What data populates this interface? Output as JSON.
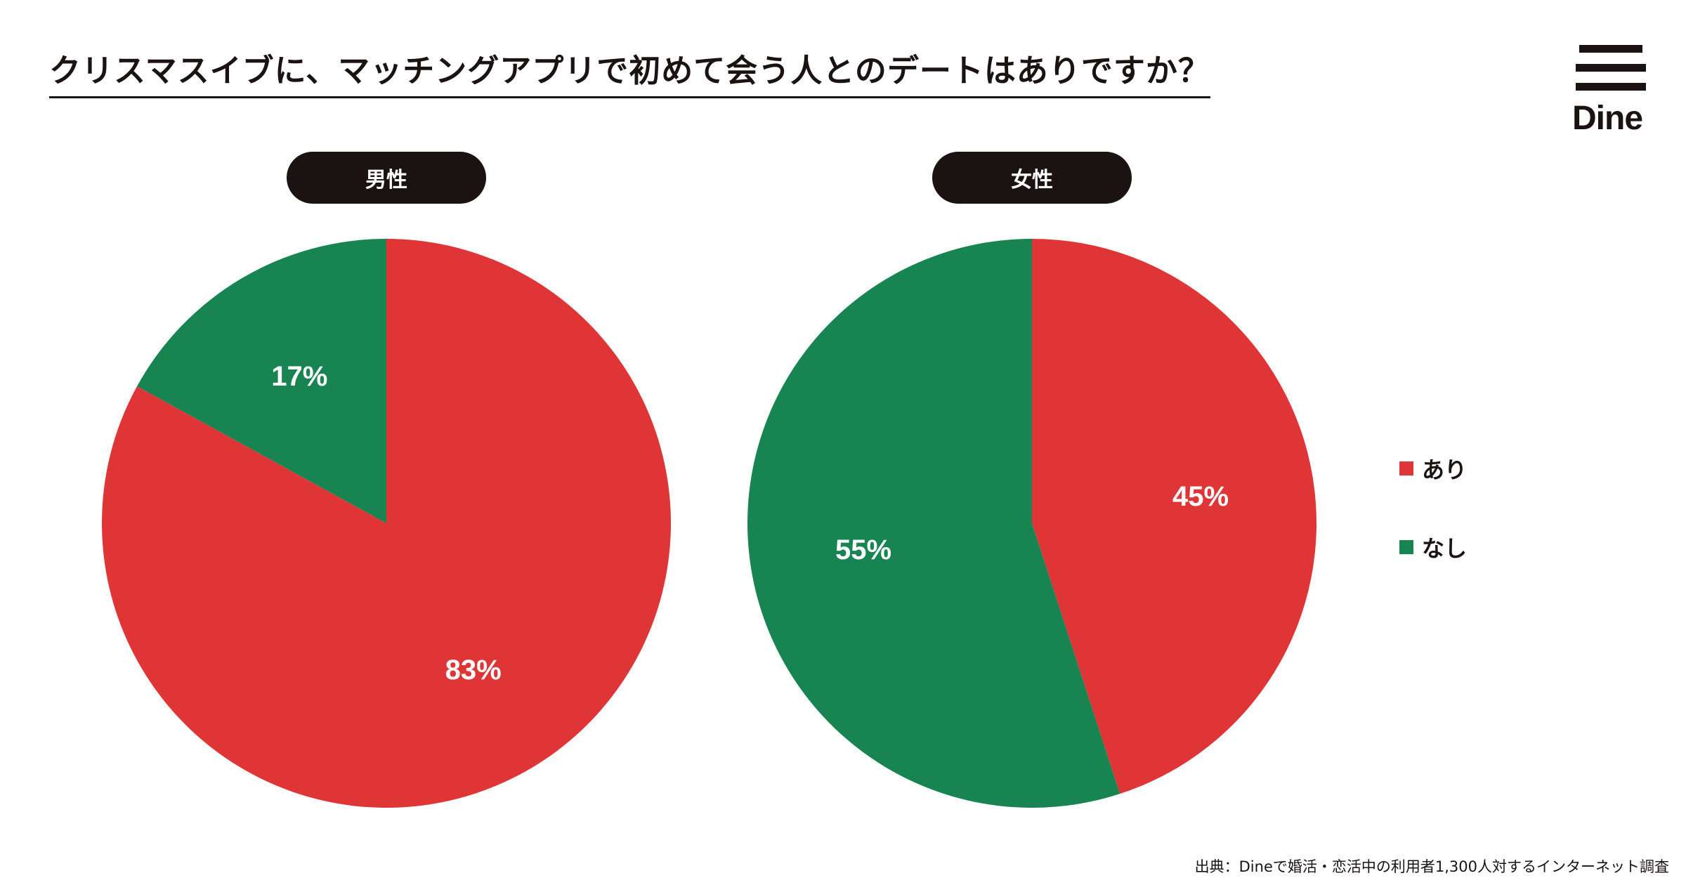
{
  "title": "クリスマスイブに、マッチングアプリで初めて会う人とのデートはありですか？",
  "logo": {
    "text": "Dine"
  },
  "source": "出典：Dineで婚活・恋活中の利用者1,300人対するインターネット調査",
  "colors": {
    "yes": "#e03536",
    "no": "#178451",
    "text": "#1a1311"
  },
  "legend": [
    {
      "label": "あり",
      "color": "#e03536"
    },
    {
      "label": "なし",
      "color": "#178451"
    }
  ],
  "chart_data": [
    {
      "type": "pie",
      "title": "男性",
      "slices": [
        {
          "label": "あり",
          "value": 83,
          "display": "83%",
          "color": "#e03536"
        },
        {
          "label": "なし",
          "value": 17,
          "display": "17%",
          "color": "#178451"
        }
      ]
    },
    {
      "type": "pie",
      "title": "女性",
      "slices": [
        {
          "label": "あり",
          "value": 45,
          "display": "45%",
          "color": "#e03536"
        },
        {
          "label": "なし",
          "value": 55,
          "display": "55%",
          "color": "#178451"
        }
      ]
    }
  ]
}
